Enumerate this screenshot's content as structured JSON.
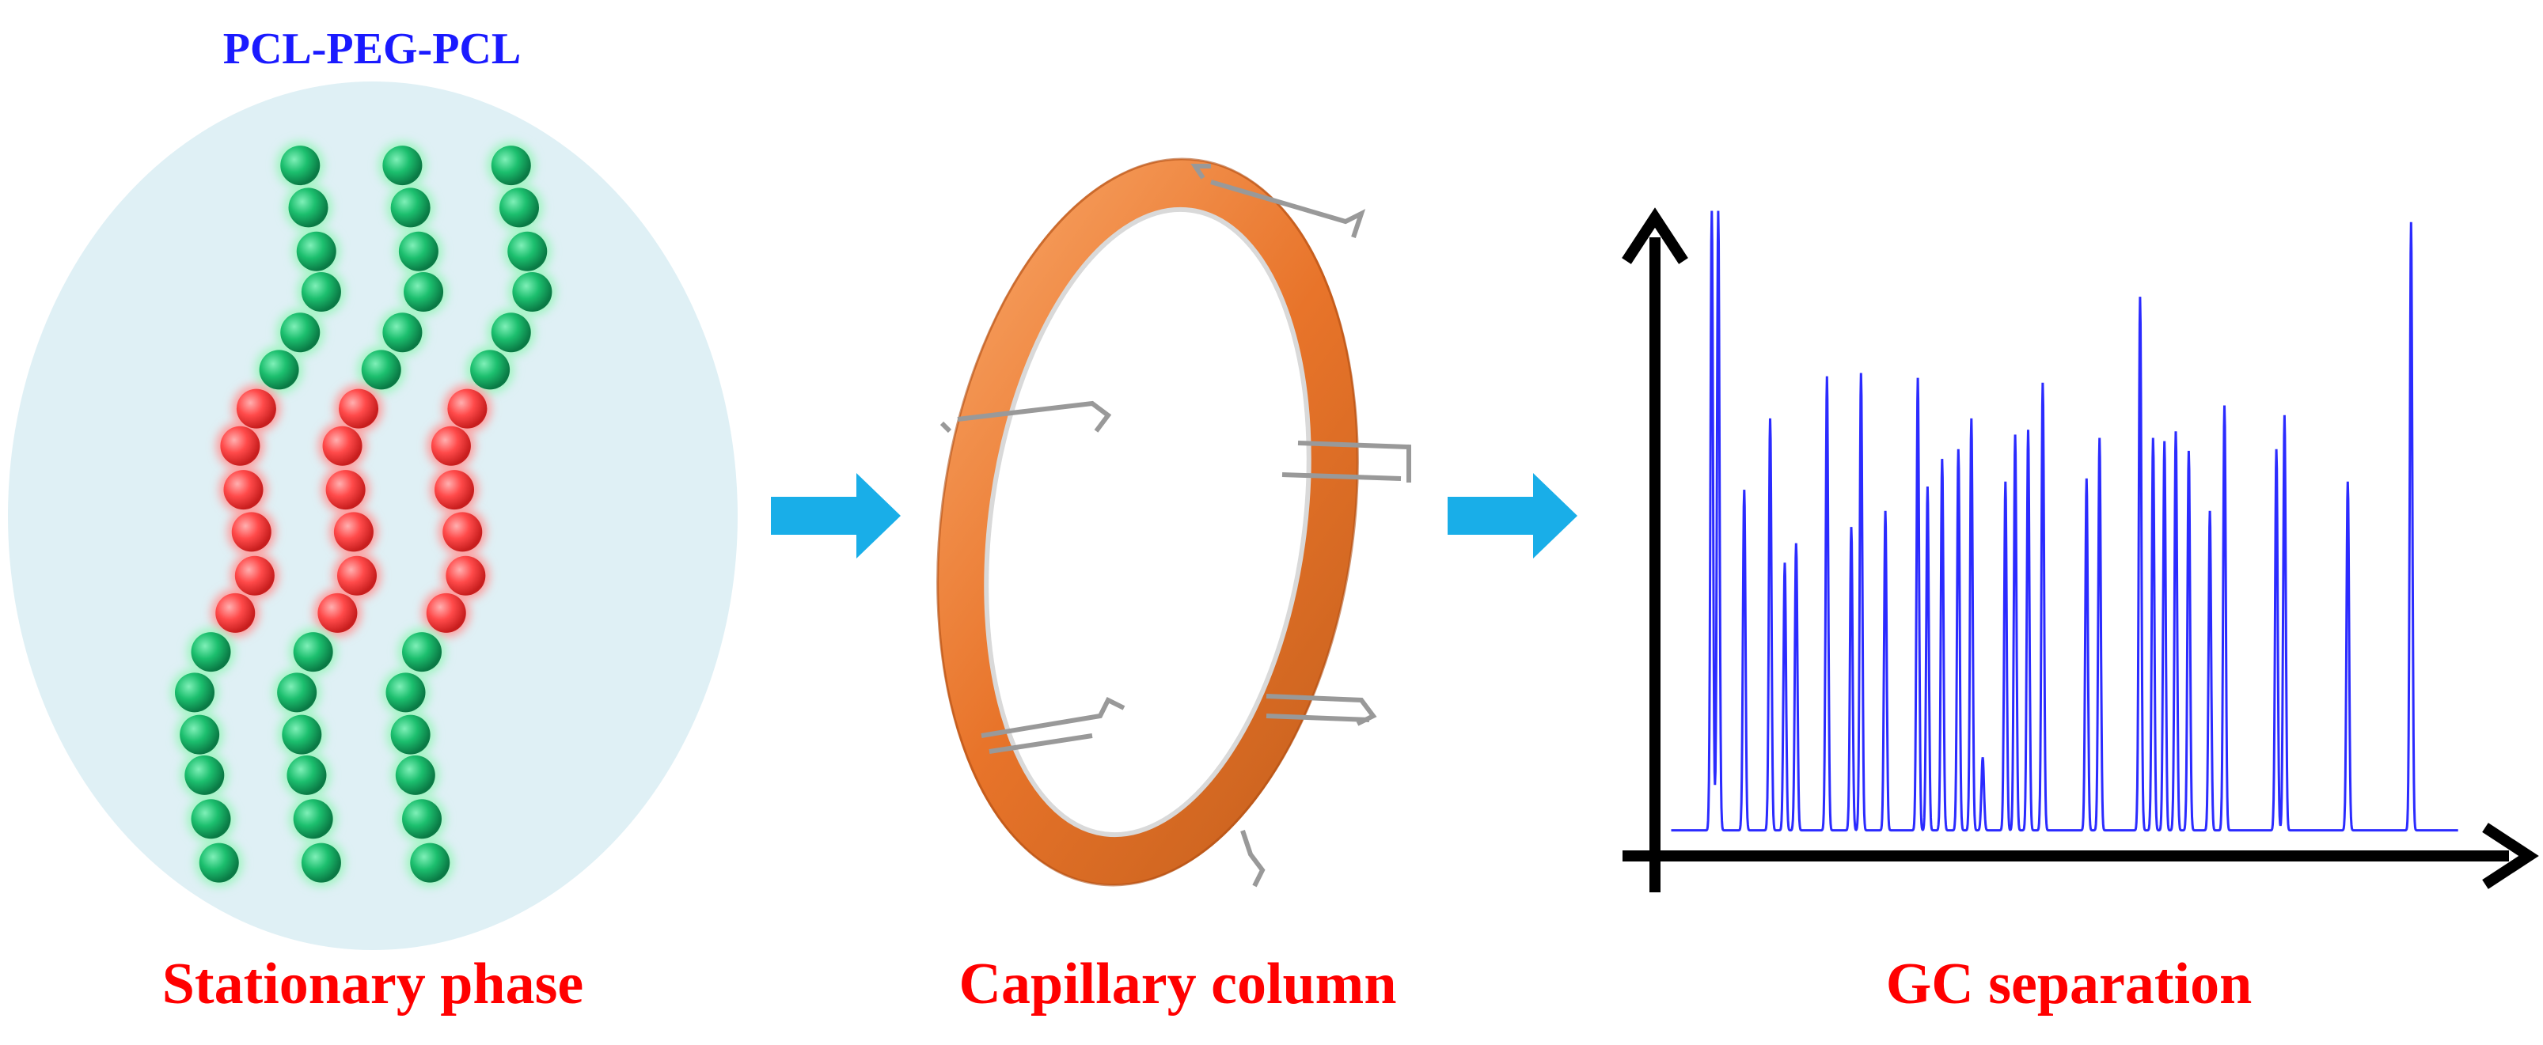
{
  "header": {
    "title": "PCL-PEG-PCL"
  },
  "panels": [
    {
      "label": "Stationary phase"
    },
    {
      "label": "Capillary column"
    },
    {
      "label": "GC separation"
    }
  ]
}
